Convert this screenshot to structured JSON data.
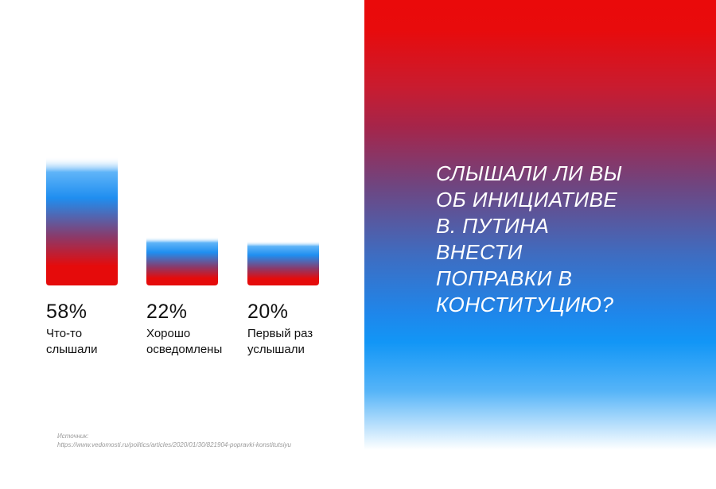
{
  "question": "СЛЫШАЛИ ЛИ ВЫ\nОБ ИНИЦИАТИВЕ\nВ. ПУТИНА\nВНЕСТИ\nПОПРАВКИ В\nКОНСТИТУЦИЮ?",
  "chart_data": {
    "type": "bar",
    "categories": [
      "Что-то слышали",
      "Хорошо осведомлены",
      "Первый раз услышали"
    ],
    "values": [
      58,
      22,
      20
    ],
    "value_labels": [
      "58%",
      "22%",
      "20%"
    ],
    "description_lines": [
      [
        "Что-то",
        "слышали"
      ],
      [
        "Хорошо",
        "осведомлены"
      ],
      [
        "Первый раз",
        "услышали"
      ]
    ],
    "unit": "%",
    "grid": false,
    "legend": "none"
  },
  "colors": {
    "red": "#e50b0b",
    "blue": "#1f8ef0",
    "white": "#ffffff",
    "text": "#111111",
    "source_text": "#9a9a9a"
  },
  "source": {
    "label": "Источник:",
    "url": "https://www.vedomosti.ru/politics/articles/2020/01/30/821904-popravki-konstitutsiyu"
  }
}
